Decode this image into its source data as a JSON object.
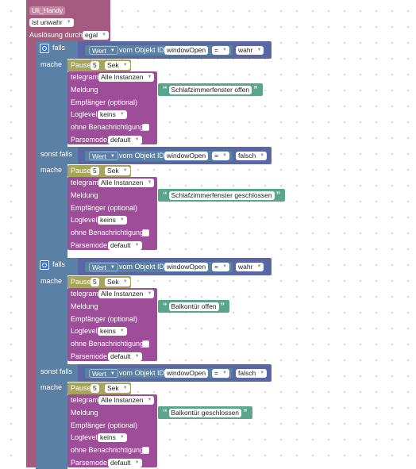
{
  "colors": {
    "trigger": "#a55b80",
    "logic": "#5b80a5",
    "compare": "#5b67a5",
    "value": "#5ba58c",
    "timer": "#a5a55b",
    "telegram": "#9e4e99"
  },
  "trigger": {
    "top_value": "Uli_Handy",
    "condition": "ist unwahr",
    "trigger_label": "Auslösung durch",
    "trigger_value": "egal"
  },
  "labels": {
    "if": "falls",
    "elseif": "sonst falls",
    "do": "mache",
    "wert": "Wert",
    "vom_objekt": "vom Objekt ID",
    "object_id": "windowOpen",
    "op": "=",
    "pause": "Pause",
    "pause_value": "5",
    "pause_unit": "Sek",
    "telegram": "telegram",
    "instances": "Alle Instanzen",
    "meldung": "Meldung",
    "empfaenger": "Empfänger (optional)",
    "loglevel": "Loglevel",
    "loglevel_value": "keins",
    "ohne": "ohne Benachrichtigung",
    "parsemode": "Parsemode",
    "parsemode_value": "default"
  },
  "groups": [
    {
      "kind": "if",
      "value": "wahr",
      "message": "Schlafzimmerfenster offen"
    },
    {
      "kind": "elseif",
      "value": "falsch",
      "message": "Schlafzimmerfenster geschlossen"
    },
    {
      "kind": "if",
      "value": "wahr",
      "message": "Balkontür offen"
    },
    {
      "kind": "elseif",
      "value": "falsch",
      "message": "Balkontür geschlossen"
    }
  ]
}
